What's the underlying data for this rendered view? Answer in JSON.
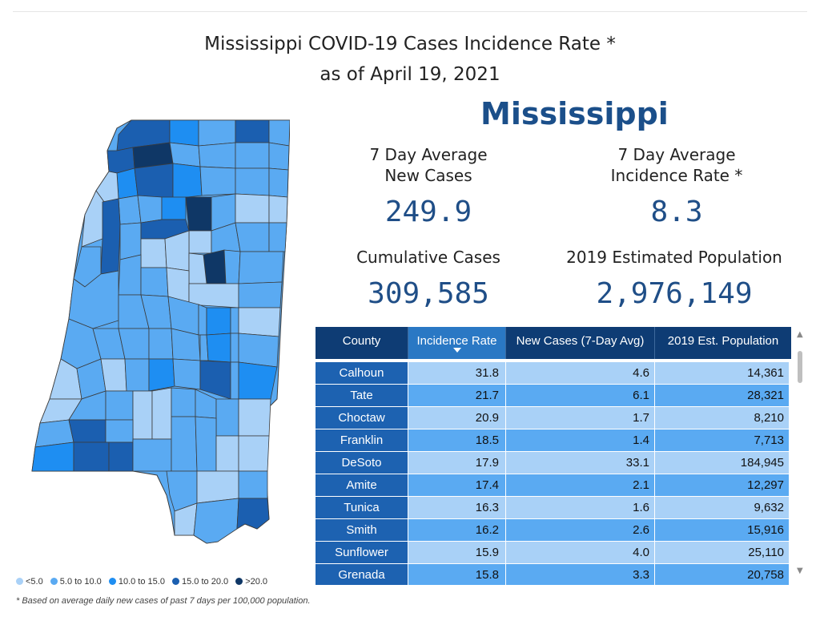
{
  "title_line1": "Mississippi COVID-19 Cases Incidence Rate *",
  "title_line2": "as of April 19, 2021",
  "state_name": "Mississippi",
  "kpis": {
    "avg_new_cases_label_1": "7 Day Average",
    "avg_new_cases_label_2": "New Cases",
    "avg_new_cases_value": "249.9",
    "avg_incidence_label_1": "7 Day Average",
    "avg_incidence_label_2": "Incidence Rate *",
    "avg_incidence_value": "8.3",
    "cumulative_label": "Cumulative Cases",
    "cumulative_value": "309,585",
    "population_label": "2019 Estimated Population",
    "population_value": "2,976,149"
  },
  "colors": {
    "lt5": "#a9d1f7",
    "5to10": "#5aaaf2",
    "10to15": "#1e8ef2",
    "15to20": "#1b5fb0",
    "gt20": "#0f3766",
    "header": "#0e3c74",
    "row_light": "#a9d1f7",
    "row_mid": "#5aaaf2"
  },
  "table": {
    "columns": [
      "County",
      "Incidence Rate",
      "New Cases (7-Day Avg)",
      "2019 Est. Population"
    ],
    "rows": [
      {
        "county": "Calhoun",
        "rate": "31.8",
        "new": "4.6",
        "pop": "14,361"
      },
      {
        "county": "Tate",
        "rate": "21.7",
        "new": "6.1",
        "pop": "28,321"
      },
      {
        "county": "Choctaw",
        "rate": "20.9",
        "new": "1.7",
        "pop": "8,210"
      },
      {
        "county": "Franklin",
        "rate": "18.5",
        "new": "1.4",
        "pop": "7,713"
      },
      {
        "county": "DeSoto",
        "rate": "17.9",
        "new": "33.1",
        "pop": "184,945"
      },
      {
        "county": "Amite",
        "rate": "17.4",
        "new": "2.1",
        "pop": "12,297"
      },
      {
        "county": "Tunica",
        "rate": "16.3",
        "new": "1.6",
        "pop": "9,632"
      },
      {
        "county": "Smith",
        "rate": "16.2",
        "new": "2.6",
        "pop": "15,916"
      },
      {
        "county": "Sunflower",
        "rate": "15.9",
        "new": "4.0",
        "pop": "25,110"
      },
      {
        "county": "Grenada",
        "rate": "15.8",
        "new": "3.3",
        "pop": "20,758"
      }
    ]
  },
  "legend": [
    {
      "label": "<5.0",
      "color": "#a9d1f7"
    },
    {
      "label": "5.0 to 10.0",
      "color": "#5aaaf2"
    },
    {
      "label": "10.0 to 15.0",
      "color": "#1e8ef2"
    },
    {
      "label": "15.0 to 20.0",
      "color": "#1b5fb0"
    },
    {
      "label": ">20.0",
      "color": "#0f3766"
    }
  ],
  "footnote": "* Based on average daily new cases of past 7 days per 100,000 population."
}
